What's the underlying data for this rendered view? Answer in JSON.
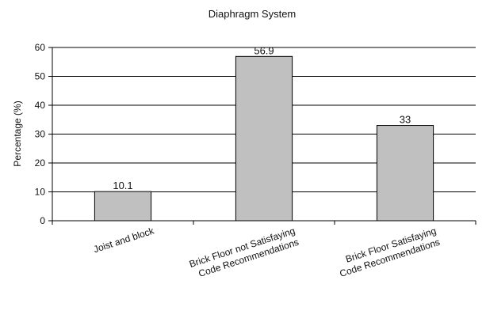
{
  "chart_data": {
    "type": "bar",
    "title": "Diaphragm System",
    "xlabel": "",
    "ylabel": "Percentage (%)",
    "ylim": [
      0,
      60
    ],
    "yticks": [
      0,
      10,
      20,
      30,
      40,
      50,
      60
    ],
    "grid": true,
    "categories": [
      [
        "Joist and block"
      ],
      [
        "Brick Floor not Satisfaying",
        "Code Recommendations"
      ],
      [
        "Brick Floor Satisfaying",
        "Code Recommendations"
      ]
    ],
    "values": [
      10.1,
      56.9,
      33
    ],
    "value_labels": [
      "10.1",
      "56.9",
      "33"
    ],
    "bar_color": "#c0c0c0"
  }
}
